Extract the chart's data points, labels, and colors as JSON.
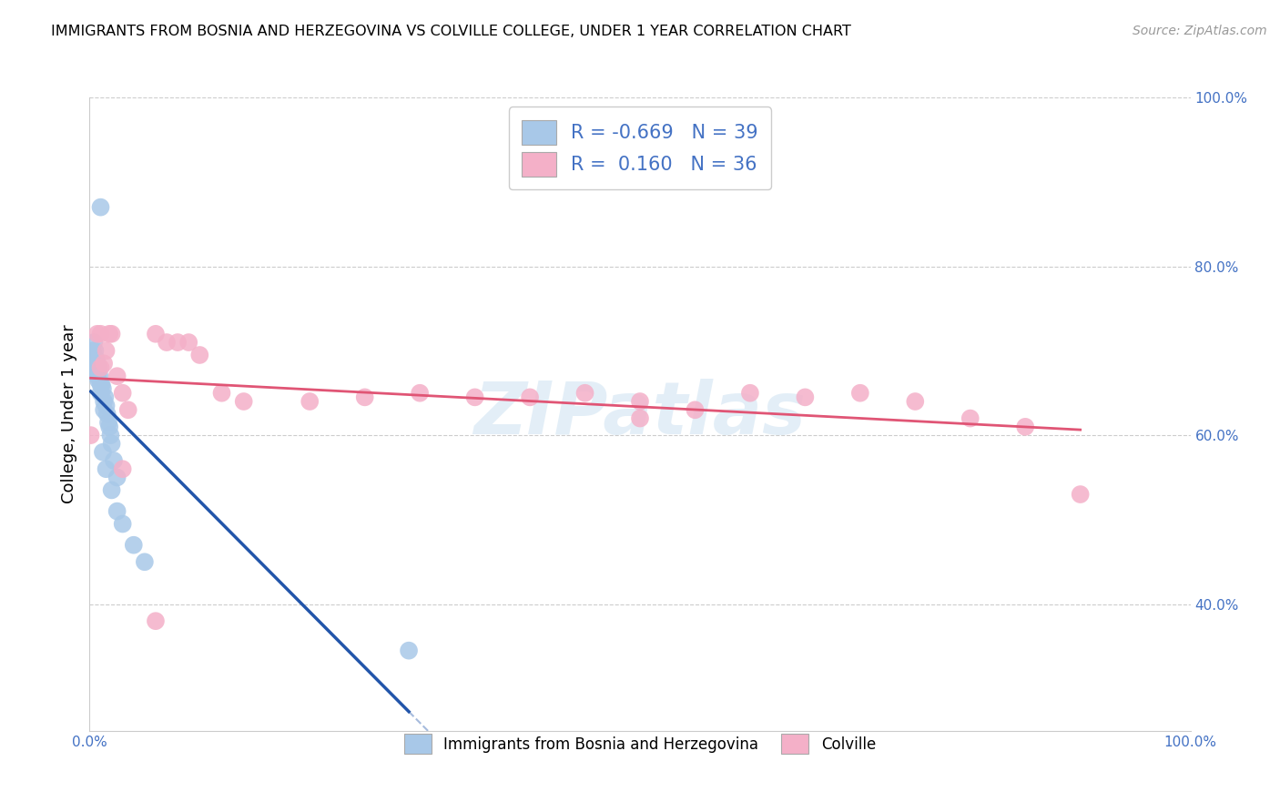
{
  "title": "IMMIGRANTS FROM BOSNIA AND HERZEGOVINA VS COLVILLE COLLEGE, UNDER 1 YEAR CORRELATION CHART",
  "source": "Source: ZipAtlas.com",
  "ylabel": "College, Under 1 year",
  "legend_blue_r": "-0.669",
  "legend_blue_n": "39",
  "legend_pink_r": "0.160",
  "legend_pink_n": "36",
  "legend_label_blue": "Immigrants from Bosnia and Herzegovina",
  "legend_label_pink": "Colville",
  "blue_color": "#a8c8e8",
  "pink_color": "#f4b0c8",
  "blue_line_color": "#2255aa",
  "pink_line_color": "#e05575",
  "watermark": "ZIPatlas",
  "blue_dots_x": [
    0.001,
    0.002,
    0.003,
    0.003,
    0.004,
    0.004,
    0.005,
    0.005,
    0.006,
    0.006,
    0.007,
    0.007,
    0.008,
    0.008,
    0.009,
    0.01,
    0.01,
    0.011,
    0.012,
    0.013,
    0.013,
    0.014,
    0.015,
    0.016,
    0.017,
    0.018,
    0.019,
    0.02,
    0.022,
    0.025,
    0.01,
    0.012,
    0.015,
    0.02,
    0.025,
    0.03,
    0.04,
    0.05,
    0.29
  ],
  "blue_dots_y": [
    0.68,
    0.69,
    0.7,
    0.68,
    0.71,
    0.69,
    0.7,
    0.68,
    0.69,
    0.675,
    0.685,
    0.67,
    0.68,
    0.665,
    0.67,
    0.66,
    0.65,
    0.66,
    0.655,
    0.64,
    0.63,
    0.645,
    0.635,
    0.625,
    0.615,
    0.61,
    0.6,
    0.59,
    0.57,
    0.55,
    0.87,
    0.58,
    0.56,
    0.535,
    0.51,
    0.495,
    0.47,
    0.45,
    0.345
  ],
  "pink_dots_x": [
    0.001,
    0.007,
    0.01,
    0.01,
    0.013,
    0.015,
    0.018,
    0.02,
    0.025,
    0.03,
    0.035,
    0.06,
    0.07,
    0.08,
    0.09,
    0.1,
    0.12,
    0.14,
    0.2,
    0.25,
    0.3,
    0.35,
    0.4,
    0.45,
    0.5,
    0.55,
    0.6,
    0.65,
    0.7,
    0.75,
    0.8,
    0.85,
    0.9,
    0.03,
    0.06,
    0.5
  ],
  "pink_dots_y": [
    0.6,
    0.72,
    0.72,
    0.68,
    0.685,
    0.7,
    0.72,
    0.72,
    0.67,
    0.65,
    0.63,
    0.72,
    0.71,
    0.71,
    0.71,
    0.695,
    0.65,
    0.64,
    0.64,
    0.645,
    0.65,
    0.645,
    0.645,
    0.65,
    0.64,
    0.63,
    0.65,
    0.645,
    0.65,
    0.64,
    0.62,
    0.61,
    0.53,
    0.56,
    0.38,
    0.62
  ],
  "xlim": [
    0.0,
    1.0
  ],
  "ylim": [
    0.25,
    1.0
  ],
  "background_color": "#ffffff",
  "grid_color": "#cccccc",
  "axis_color": "#4472c4"
}
